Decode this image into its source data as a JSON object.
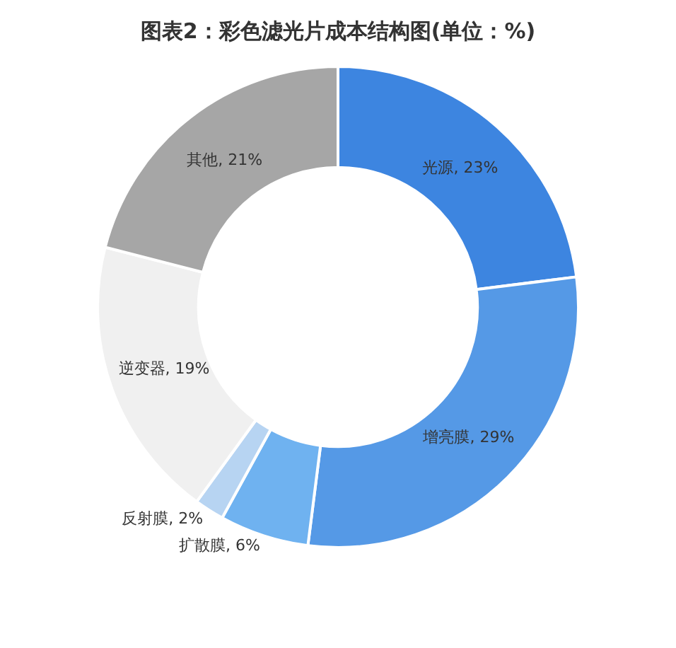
{
  "chart_data": {
    "type": "donut",
    "title": "图表2：彩色滤光片成本结构图(单位：%)",
    "categories": [
      "光源",
      "增亮膜",
      "扩散膜",
      "反射膜",
      "逆变器",
      "其他"
    ],
    "values": [
      23,
      29,
      6,
      2,
      19,
      21
    ],
    "value_labels": [
      "23%",
      "29%",
      "6%",
      "2%",
      "19%",
      "21%"
    ],
    "colors": [
      "#3d85e0",
      "#5599e6",
      "#6fb2f0",
      "#b7d4f2",
      "#f0f0f0",
      "#a6a6a6"
    ],
    "legend": false
  }
}
